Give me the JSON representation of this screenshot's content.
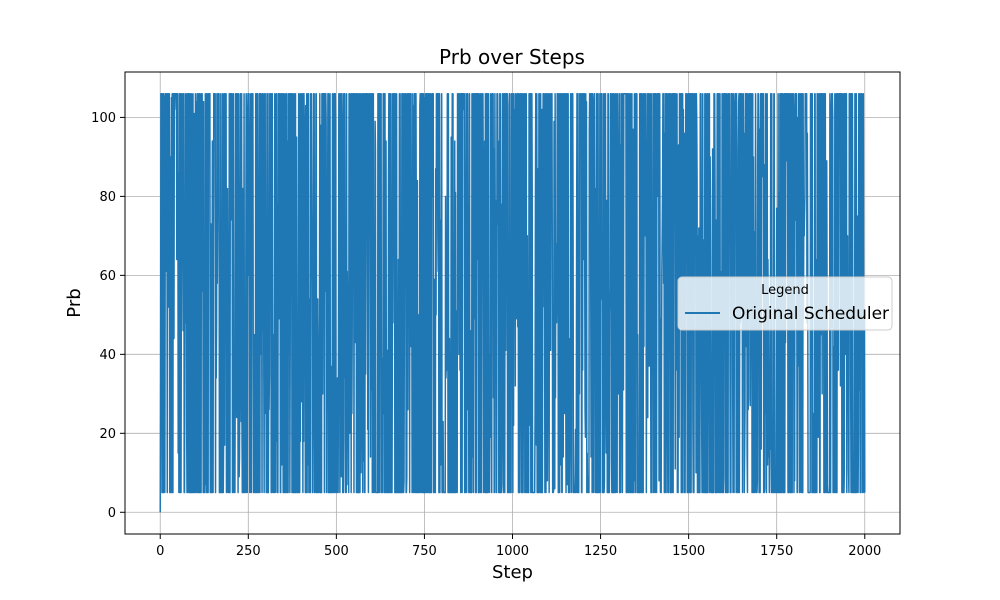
{
  "chart_data": {
    "type": "line",
    "title": "Prb over Steps",
    "xlabel": "Step",
    "ylabel": "Prb",
    "xlim": [
      -100,
      2100
    ],
    "ylim": [
      -5.5,
      111.5
    ],
    "xticks": [
      0,
      250,
      500,
      750,
      1000,
      1250,
      1500,
      1750,
      2000
    ],
    "yticks": [
      0,
      20,
      40,
      60,
      80,
      100
    ],
    "xtick_labels": [
      "0",
      "250",
      "500",
      "750",
      "1000",
      "1250",
      "1500",
      "1750",
      "2000"
    ],
    "ytick_labels": [
      "0",
      "20",
      "40",
      "60",
      "80",
      "100"
    ],
    "grid": true,
    "legend": {
      "title": "Legend",
      "placement": "center-right"
    },
    "value_range": [
      0,
      106
    ],
    "series": [
      {
        "name": "Original Scheduler",
        "color": "#1f77b4",
        "x_start": 0,
        "x_end": 2000,
        "initial_points": [
          [
            0,
            0
          ],
          [
            1,
            35
          ],
          [
            2,
            106
          ]
        ],
        "low_value": 5,
        "high_value": 106,
        "pattern": "rapidly oscillating step series between ~5 and ~106 over 2000 steps"
      }
    ]
  }
}
